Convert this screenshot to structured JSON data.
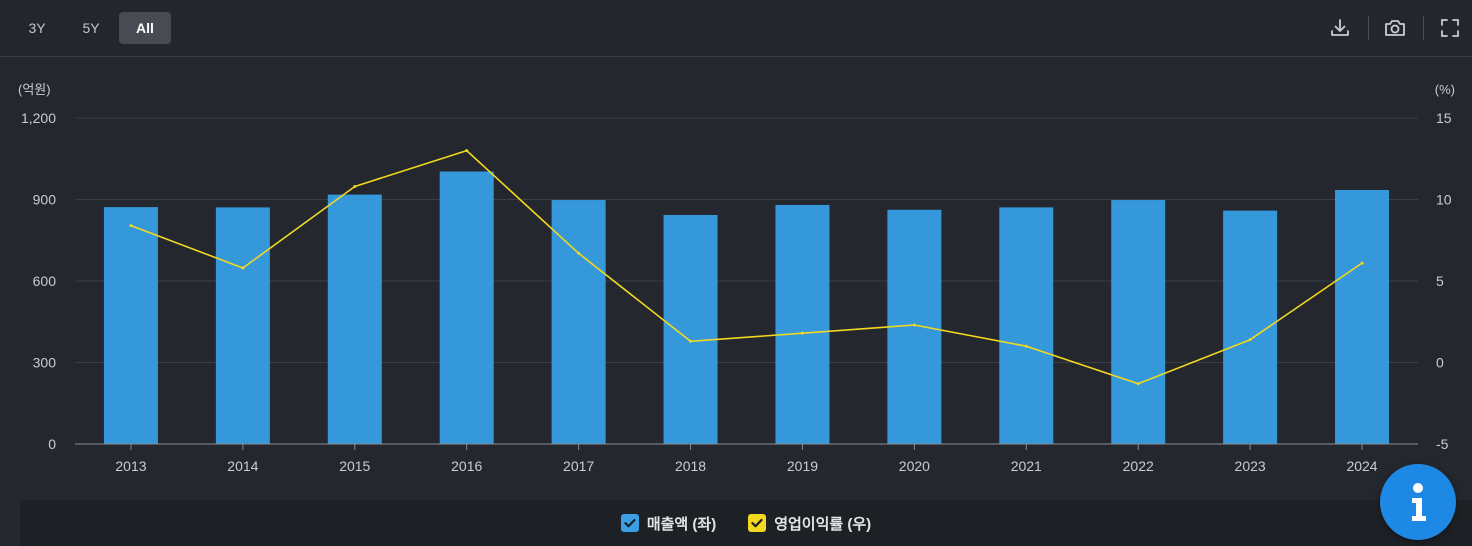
{
  "toolbar": {
    "range_tabs": [
      "3Y",
      "5Y",
      "All"
    ],
    "active_tab": "All",
    "icons": [
      "download-icon",
      "camera-icon",
      "fullscreen-icon"
    ]
  },
  "colors": {
    "bar": "#3498db",
    "line": "#f2d81f",
    "background": "#24272d"
  },
  "chart_data": {
    "type": "bar",
    "categories": [
      "2013",
      "2014",
      "2015",
      "2016",
      "2017",
      "2018",
      "2019",
      "2020",
      "2021",
      "2022",
      "2023",
      "2024"
    ],
    "series": [
      {
        "name": "매출액 (좌)",
        "type": "bar",
        "axis": "left",
        "values": [
          872,
          871,
          918,
          1003,
          898,
          843,
          880,
          862,
          871,
          898,
          859,
          935
        ]
      },
      {
        "name": "영업이익률 (우)",
        "type": "line",
        "axis": "right",
        "values": [
          8.4,
          5.8,
          10.8,
          13.0,
          6.7,
          1.3,
          1.8,
          2.3,
          1.0,
          -1.3,
          1.4,
          6.1
        ]
      }
    ],
    "left_axis": {
      "unit": "(억원)",
      "ticks": [
        "0",
        "300",
        "600",
        "900",
        "1,200"
      ],
      "ylim": [
        0,
        1200
      ]
    },
    "right_axis": {
      "unit": "(%)",
      "ticks": [
        "-5",
        "0",
        "5",
        "10",
        "15"
      ],
      "ylim": [
        -5,
        15
      ]
    },
    "grid": true,
    "legend": "bottom-center"
  },
  "legend": {
    "items": [
      {
        "label": "매출액 (좌)",
        "color": "#3498db"
      },
      {
        "label": "영업이익률 (우)",
        "color": "#f2d81f"
      }
    ]
  },
  "info_button": {
    "icon": "info-icon",
    "label": "i"
  }
}
